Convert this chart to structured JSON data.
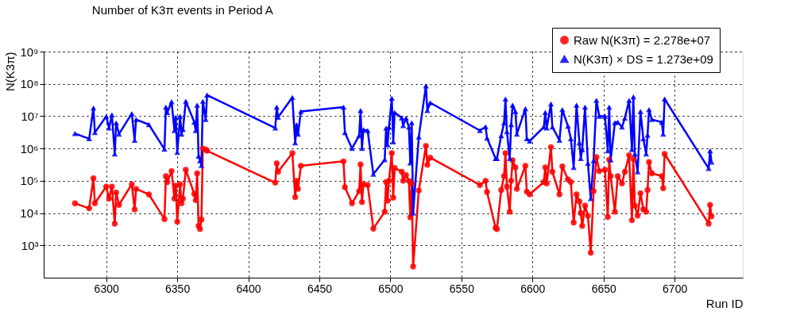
{
  "chart_data": {
    "type": "line",
    "title": "Number of K3π events in Period A",
    "xlabel": "Run ID",
    "ylabel": "N(K3π)",
    "x": [
      6278,
      6288,
      6291,
      6292,
      6300,
      6302,
      6304,
      6306,
      6307,
      6309,
      6318,
      6320,
      6321,
      6330,
      6341,
      6342,
      6343,
      6346,
      6348,
      6349,
      6350,
      6352,
      6353,
      6354,
      6356,
      6362,
      6363,
      6364,
      6365,
      6366,
      6367,
      6368,
      6370,
      6371,
      6419,
      6420,
      6421,
      6431,
      6433,
      6434,
      6435,
      6437,
      6467,
      6468,
      6473,
      6478,
      6479,
      6480,
      6481,
      6484,
      6488,
      6496,
      6497,
      6498,
      6499,
      6501,
      6502,
      6503,
      6508,
      6509,
      6511,
      6513,
      6514,
      6515,
      6516,
      6520,
      6525,
      6526,
      6528,
      6563,
      6567,
      6568,
      6574,
      6575,
      6578,
      6580,
      6581,
      6582,
      6584,
      6585,
      6586,
      6588,
      6589,
      6595,
      6596,
      6598,
      6608,
      6609,
      6610,
      6613,
      6614,
      6619,
      6621,
      6625,
      6627,
      6629,
      6631,
      6633,
      6634,
      6635,
      6637,
      6639,
      6641,
      6643,
      6645,
      6647,
      6651,
      6653,
      6654,
      6655,
      6658,
      6660,
      6663,
      6665,
      6668,
      6670,
      6671,
      6672,
      6674,
      6676,
      6678,
      6680,
      6681,
      6682,
      6684,
      6691,
      6692,
      6693,
      6724,
      6725,
      6726
    ],
    "series": [
      {
        "name": "Raw N(K3π) = 2.278e+07",
        "color": "#ff0000",
        "marker": "circle",
        "values": [
          20000.0,
          14000.0,
          120000.0,
          20000.0,
          66000.0,
          28000.0,
          66000.0,
          4700.0,
          43000.0,
          18000.0,
          78000.0,
          13000.0,
          56000.0,
          38000.0,
          6500.0,
          140000.0,
          91000.0,
          200000.0,
          28000.0,
          71000.0,
          5400.0,
          78000.0,
          20000.0,
          28000.0,
          220000.0,
          39000.0,
          25000.0,
          170000.0,
          4000.0,
          3200.0,
          6300.0,
          1000000.0,
          930000.0,
          850000.0,
          87000.0,
          350000.0,
          190000.0,
          720000.0,
          31000.0,
          100000.0,
          56000.0,
          290000.0,
          400000.0,
          63000.0,
          20000.0,
          48000.0,
          320000.0,
          22000.0,
          78000.0,
          74000.0,
          3300.0,
          11000.0,
          91000.0,
          24000.0,
          100000.0,
          720000.0,
          30000.0,
          250000.0,
          190000.0,
          100000.0,
          150000.0,
          100000.0,
          7400.0,
          83000.0,
          220,
          50000.0,
          1200000.0,
          310000.0,
          520000.0,
          74000.0,
          100000.0,
          45000.0,
          3500.0,
          3200.0,
          52000.0,
          140000.0,
          720000.0,
          66000.0,
          11000.0,
          100000.0,
          430000.0,
          260000.0,
          56000.0,
          290000.0,
          46000.0,
          38000.0,
          91000.0,
          260000.0,
          83000.0,
          1100000.0,
          190000.0,
          38000.0,
          280000.0,
          110000.0,
          91000.0,
          5100.0,
          38000.0,
          23000.0,
          10000.0,
          4000.0,
          17000.0,
          8300.0,
          590,
          48000.0,
          540000.0,
          200000.0,
          220000.0,
          7600.0,
          450000.0,
          140000.0,
          11000.0,
          140000.0,
          83000.0,
          190000.0,
          620000.0,
          6000.0,
          470000.0,
          17000.0,
          8300.0,
          41000.0,
          13000.0,
          11000.0,
          52000.0,
          380000.0,
          170000.0,
          140000.0,
          59000.0,
          680000.0,
          4700.0,
          18000.0,
          7900.0
        ]
      },
      {
        "name": "N(K3π) × DS = 1.273e+09",
        "color": "#0000ff",
        "marker": "triangle",
        "values": [
          2900000.0,
          2000000.0,
          18000000.0,
          3100000.0,
          9800000.0,
          4300000.0,
          11000000.0,
          680000.0,
          6200000.0,
          2800000.0,
          12000000.0,
          1800000.0,
          7900000.0,
          5500000.0,
          950000.0,
          19000000.0,
          13000000.0,
          28000000.0,
          3600000.0,
          9300000.0,
          760000.0,
          10000000.0,
          2800000.0,
          3900000.0,
          29000000.0,
          6500000.0,
          3600000.0,
          22000000.0,
          580000.0,
          420000.0,
          300000.0,
          29000000.0,
          7900000.0,
          45000000.0,
          4300000.0,
          19000000.0,
          9300000.0,
          38000000.0,
          1500000.0,
          5400000.0,
          2800000.0,
          14000000.0,
          19000000.0,
          3100000.0,
          1000000.0,
          2500000.0,
          15000000.0,
          1000000.0,
          3800000.0,
          3600000.0,
          160000.0,
          450000.0,
          4300000.0,
          1300000.0,
          4600000.0,
          36000000.0,
          1600000.0,
          13000000.0,
          8900000.0,
          5100000.0,
          8700000.0,
          4600000.0,
          360000.0,
          6300000.0,
          10000.0,
          2300000.0,
          87000000.0,
          15000000.0,
          26000000.0,
          3600000.0,
          4700000.0,
          2100000.0,
          490000.0,
          490000.0,
          2500000.0,
          6200000.0,
          34000000.0,
          3300000.0,
          490000.0,
          5500000.0,
          22000000.0,
          14000000.0,
          2800000.0,
          17000000.0,
          2000000.0,
          1700000.0,
          4600000.0,
          13000000.0,
          4300000.0,
          24000000.0,
          4600000.0,
          1800000.0,
          16000000.0,
          4900000.0,
          2000000.0,
          260000.0,
          22000000.0,
          1500000.0,
          490000.0,
          930000.0,
          19000000.0,
          350000.0,
          28000.0,
          420000.0,
          31000000.0,
          10000000.0,
          10000000.0,
          850000.0,
          19000000.0,
          440000.0,
          6300000.0,
          6500000.0,
          4600000.0,
          8700000.0,
          31000000.0,
          930000.0,
          40000000.0,
          680000.0,
          190000.0,
          14000000.0,
          2000000.0,
          680000.0,
          2600000.0,
          16000000.0,
          7900000.0,
          6500000.0,
          2800000.0,
          34000000.0,
          240000.0,
          850000.0,
          380000.0
        ]
      }
    ],
    "xlim": [
      6256,
      6748
    ],
    "xticks": [
      6300,
      6350,
      6400,
      6450,
      6500,
      6550,
      6600,
      6650,
      6700
    ],
    "ylim": [
      100,
      1000000000
    ],
    "log": true,
    "yticks": [
      {
        "value": 1000,
        "label": "10³"
      },
      {
        "value": 10000,
        "label": "10⁴"
      },
      {
        "value": 100000,
        "label": "10⁵"
      },
      {
        "value": 1000000,
        "label": "10⁶"
      },
      {
        "value": 10000000,
        "label": "10⁷"
      },
      {
        "value": 100000000,
        "label": "10⁸"
      },
      {
        "value": 1000000000,
        "label": "10⁹"
      }
    ],
    "grid": true,
    "legend": "top right"
  }
}
